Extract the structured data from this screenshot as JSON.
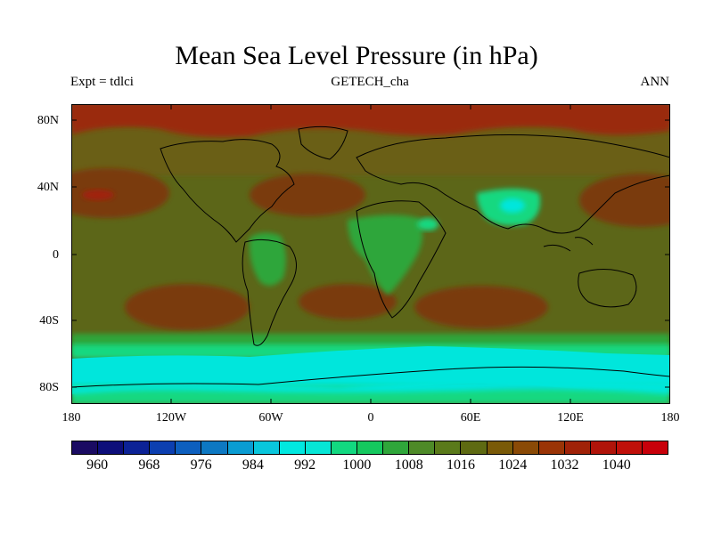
{
  "title": "Mean Sea Level Pressure (in hPa)",
  "subtitle_left": "Expt = tdlci",
  "subtitle_center": "GETECH_cha",
  "subtitle_right": "ANN",
  "lat_labels": [
    "80N",
    "40N",
    "0",
    "40S",
    "80S"
  ],
  "lon_labels": [
    "180",
    "120W",
    "60W",
    "0",
    "60E",
    "120E",
    "180"
  ],
  "colorbar": {
    "labels": [
      "960",
      "968",
      "976",
      "984",
      "992",
      "1000",
      "1008",
      "1016",
      "1024",
      "1032",
      "1040"
    ],
    "colors": [
      "#1a0b62",
      "#0d0e7a",
      "#0c2296",
      "#0c3fb0",
      "#0d5fbe",
      "#0d78c2",
      "#0a9cd2",
      "#09c6dc",
      "#00e8e0",
      "#06e6d6",
      "#12d880",
      "#15c85e",
      "#2fa63a",
      "#4e8a28",
      "#5a7a1a",
      "#5e6a12",
      "#7a5a08",
      "#8a4a06",
      "#9a3406",
      "#a02208",
      "#b0140a",
      "#c0100a",
      "#c8000a"
    ]
  },
  "colors": {
    "polar_high": "#9a2a0a",
    "subtropical_high": "#8a3a0c",
    "background_field": "#5c6618",
    "mid_field": "#6a5e12",
    "southern_trough": "#00e6dc",
    "southern_band": "#12d880",
    "low_land": "#2fa63a"
  }
}
